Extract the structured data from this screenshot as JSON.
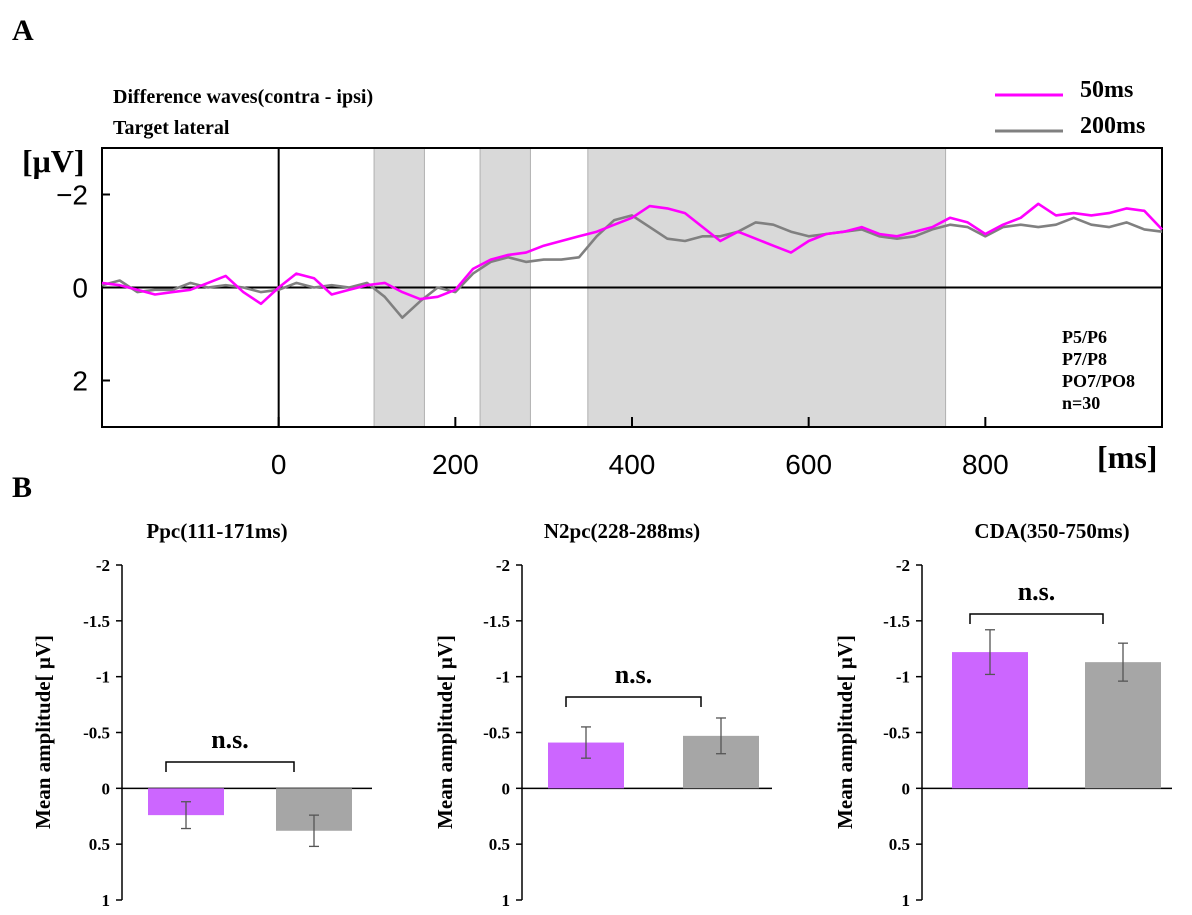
{
  "panel_labels": {
    "a": "A",
    "b": "B"
  },
  "chart_data": [
    {
      "type": "line",
      "title": "Difference waves(contra - ipsi)",
      "subtitle": "Target lateral",
      "ylabel": "[μV]",
      "xlabel": "[ms]",
      "xlim": [
        -200,
        1000
      ],
      "ylim": [
        -3.0,
        3.0
      ],
      "y_inverted": true,
      "x_ticks": [
        0,
        200,
        400,
        600,
        800
      ],
      "y_ticks": [
        -2,
        0,
        2
      ],
      "y_tick_labels": [
        "−2",
        "0",
        "2"
      ],
      "electrode_lines": [
        "P5/P6",
        "P7/P8",
        "PO7/PO8",
        "n=30"
      ],
      "shaded_windows": [
        [
          108,
          165
        ],
        [
          228,
          285
        ],
        [
          350,
          755
        ]
      ],
      "series": [
        {
          "name": "50ms",
          "color": "#ff00ff",
          "x": [
            -200,
            -180,
            -160,
            -140,
            -120,
            -100,
            -80,
            -60,
            -40,
            -20,
            0,
            20,
            40,
            60,
            80,
            100,
            120,
            140,
            160,
            180,
            200,
            220,
            240,
            260,
            280,
            300,
            320,
            340,
            360,
            380,
            400,
            420,
            440,
            460,
            480,
            500,
            520,
            540,
            560,
            580,
            600,
            620,
            640,
            660,
            680,
            700,
            720,
            740,
            760,
            780,
            800,
            820,
            840,
            860,
            880,
            900,
            920,
            940,
            960,
            980,
            1000
          ],
          "y": [
            -0.1,
            -0.05,
            0.05,
            0.15,
            0.1,
            0.05,
            -0.1,
            -0.25,
            0.1,
            0.35,
            0.0,
            -0.3,
            -0.2,
            0.15,
            0.05,
            -0.05,
            -0.1,
            0.1,
            0.25,
            0.2,
            0.05,
            -0.4,
            -0.6,
            -0.7,
            -0.75,
            -0.9,
            -1.0,
            -1.1,
            -1.2,
            -1.35,
            -1.5,
            -1.75,
            -1.7,
            -1.6,
            -1.3,
            -1.0,
            -1.2,
            -1.05,
            -0.9,
            -0.75,
            -1.0,
            -1.15,
            -1.2,
            -1.3,
            -1.15,
            -1.1,
            -1.2,
            -1.3,
            -1.5,
            -1.4,
            -1.15,
            -1.35,
            -1.5,
            -1.8,
            -1.55,
            -1.6,
            -1.55,
            -1.6,
            -1.7,
            -1.65,
            -1.25
          ]
        },
        {
          "name": "200ms",
          "color": "#808080",
          "x": [
            -200,
            -180,
            -160,
            -140,
            -120,
            -100,
            -80,
            -60,
            -40,
            -20,
            0,
            20,
            40,
            60,
            80,
            100,
            120,
            140,
            160,
            180,
            200,
            220,
            240,
            260,
            280,
            300,
            320,
            340,
            360,
            380,
            400,
            420,
            440,
            460,
            480,
            500,
            520,
            540,
            560,
            580,
            600,
            620,
            640,
            660,
            680,
            700,
            720,
            740,
            760,
            780,
            800,
            820,
            840,
            860,
            880,
            900,
            920,
            940,
            960,
            980,
            1000
          ],
          "y": [
            -0.05,
            -0.15,
            0.1,
            0.05,
            0.05,
            -0.1,
            0.0,
            -0.05,
            0.0,
            0.1,
            0.05,
            -0.1,
            0.0,
            -0.05,
            0.0,
            -0.1,
            0.2,
            0.65,
            0.3,
            0.0,
            0.1,
            -0.3,
            -0.55,
            -0.65,
            -0.55,
            -0.6,
            -0.6,
            -0.65,
            -1.1,
            -1.45,
            -1.55,
            -1.3,
            -1.05,
            -1.0,
            -1.1,
            -1.1,
            -1.2,
            -1.4,
            -1.35,
            -1.2,
            -1.1,
            -1.15,
            -1.2,
            -1.25,
            -1.1,
            -1.05,
            -1.1,
            -1.25,
            -1.35,
            -1.3,
            -1.1,
            -1.3,
            -1.35,
            -1.3,
            -1.35,
            -1.5,
            -1.35,
            -1.3,
            -1.4,
            -1.25,
            -1.2
          ]
        }
      ]
    },
    {
      "type": "bar",
      "title": "Ppc(111-171ms)",
      "ylabel": "Mean amplitude[ μV]",
      "ylim": [
        -2,
        1
      ],
      "y_inverted": true,
      "y_ticks": [
        -2,
        -1.5,
        -1,
        -0.5,
        0,
        0.5,
        1
      ],
      "categories": [
        "50ms",
        "200ms"
      ],
      "values": [
        0.24,
        0.38
      ],
      "errors": [
        0.12,
        0.14
      ],
      "colors": [
        "#cc66ff",
        "#a6a6a6"
      ],
      "annotation": "n.s."
    },
    {
      "type": "bar",
      "title": "N2pc(228-288ms)",
      "ylabel": "Mean amplitude[ μV]",
      "ylim": [
        -2,
        1
      ],
      "y_inverted": true,
      "y_ticks": [
        -2,
        -1.5,
        -1,
        -0.5,
        0,
        0.5,
        1
      ],
      "categories": [
        "50ms",
        "200ms"
      ],
      "values": [
        -0.41,
        -0.47
      ],
      "errors": [
        0.14,
        0.16
      ],
      "colors": [
        "#cc66ff",
        "#a6a6a6"
      ],
      "annotation": "n.s."
    },
    {
      "type": "bar",
      "title": "CDA(350-750ms)",
      "ylabel": "Mean amplitude[ μV]",
      "ylim": [
        -2,
        1
      ],
      "y_inverted": true,
      "y_ticks": [
        -2,
        -1.5,
        -1,
        -0.5,
        0,
        0.5,
        1
      ],
      "categories": [
        "50ms",
        "200ms"
      ],
      "values": [
        -1.22,
        -1.13
      ],
      "errors": [
        0.2,
        0.17
      ],
      "colors": [
        "#cc66ff",
        "#a6a6a6"
      ],
      "annotation": "n.s."
    }
  ]
}
